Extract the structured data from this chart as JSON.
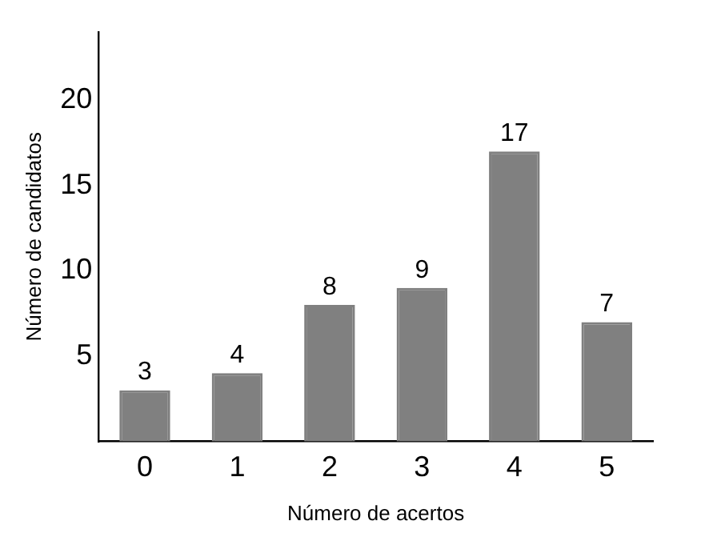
{
  "chart_data": {
    "type": "bar",
    "xlabel": "Número de acertos",
    "ylabel": "Número de candidatos",
    "categories": [
      "0",
      "1",
      "2",
      "3",
      "4",
      "5"
    ],
    "values": [
      3,
      4,
      8,
      9,
      17,
      7
    ],
    "color": "#808080",
    "ylim": [
      0,
      24
    ],
    "yticks": [
      5,
      10,
      15,
      20
    ],
    "grid": false,
    "legend": false,
    "data_labels": true
  }
}
